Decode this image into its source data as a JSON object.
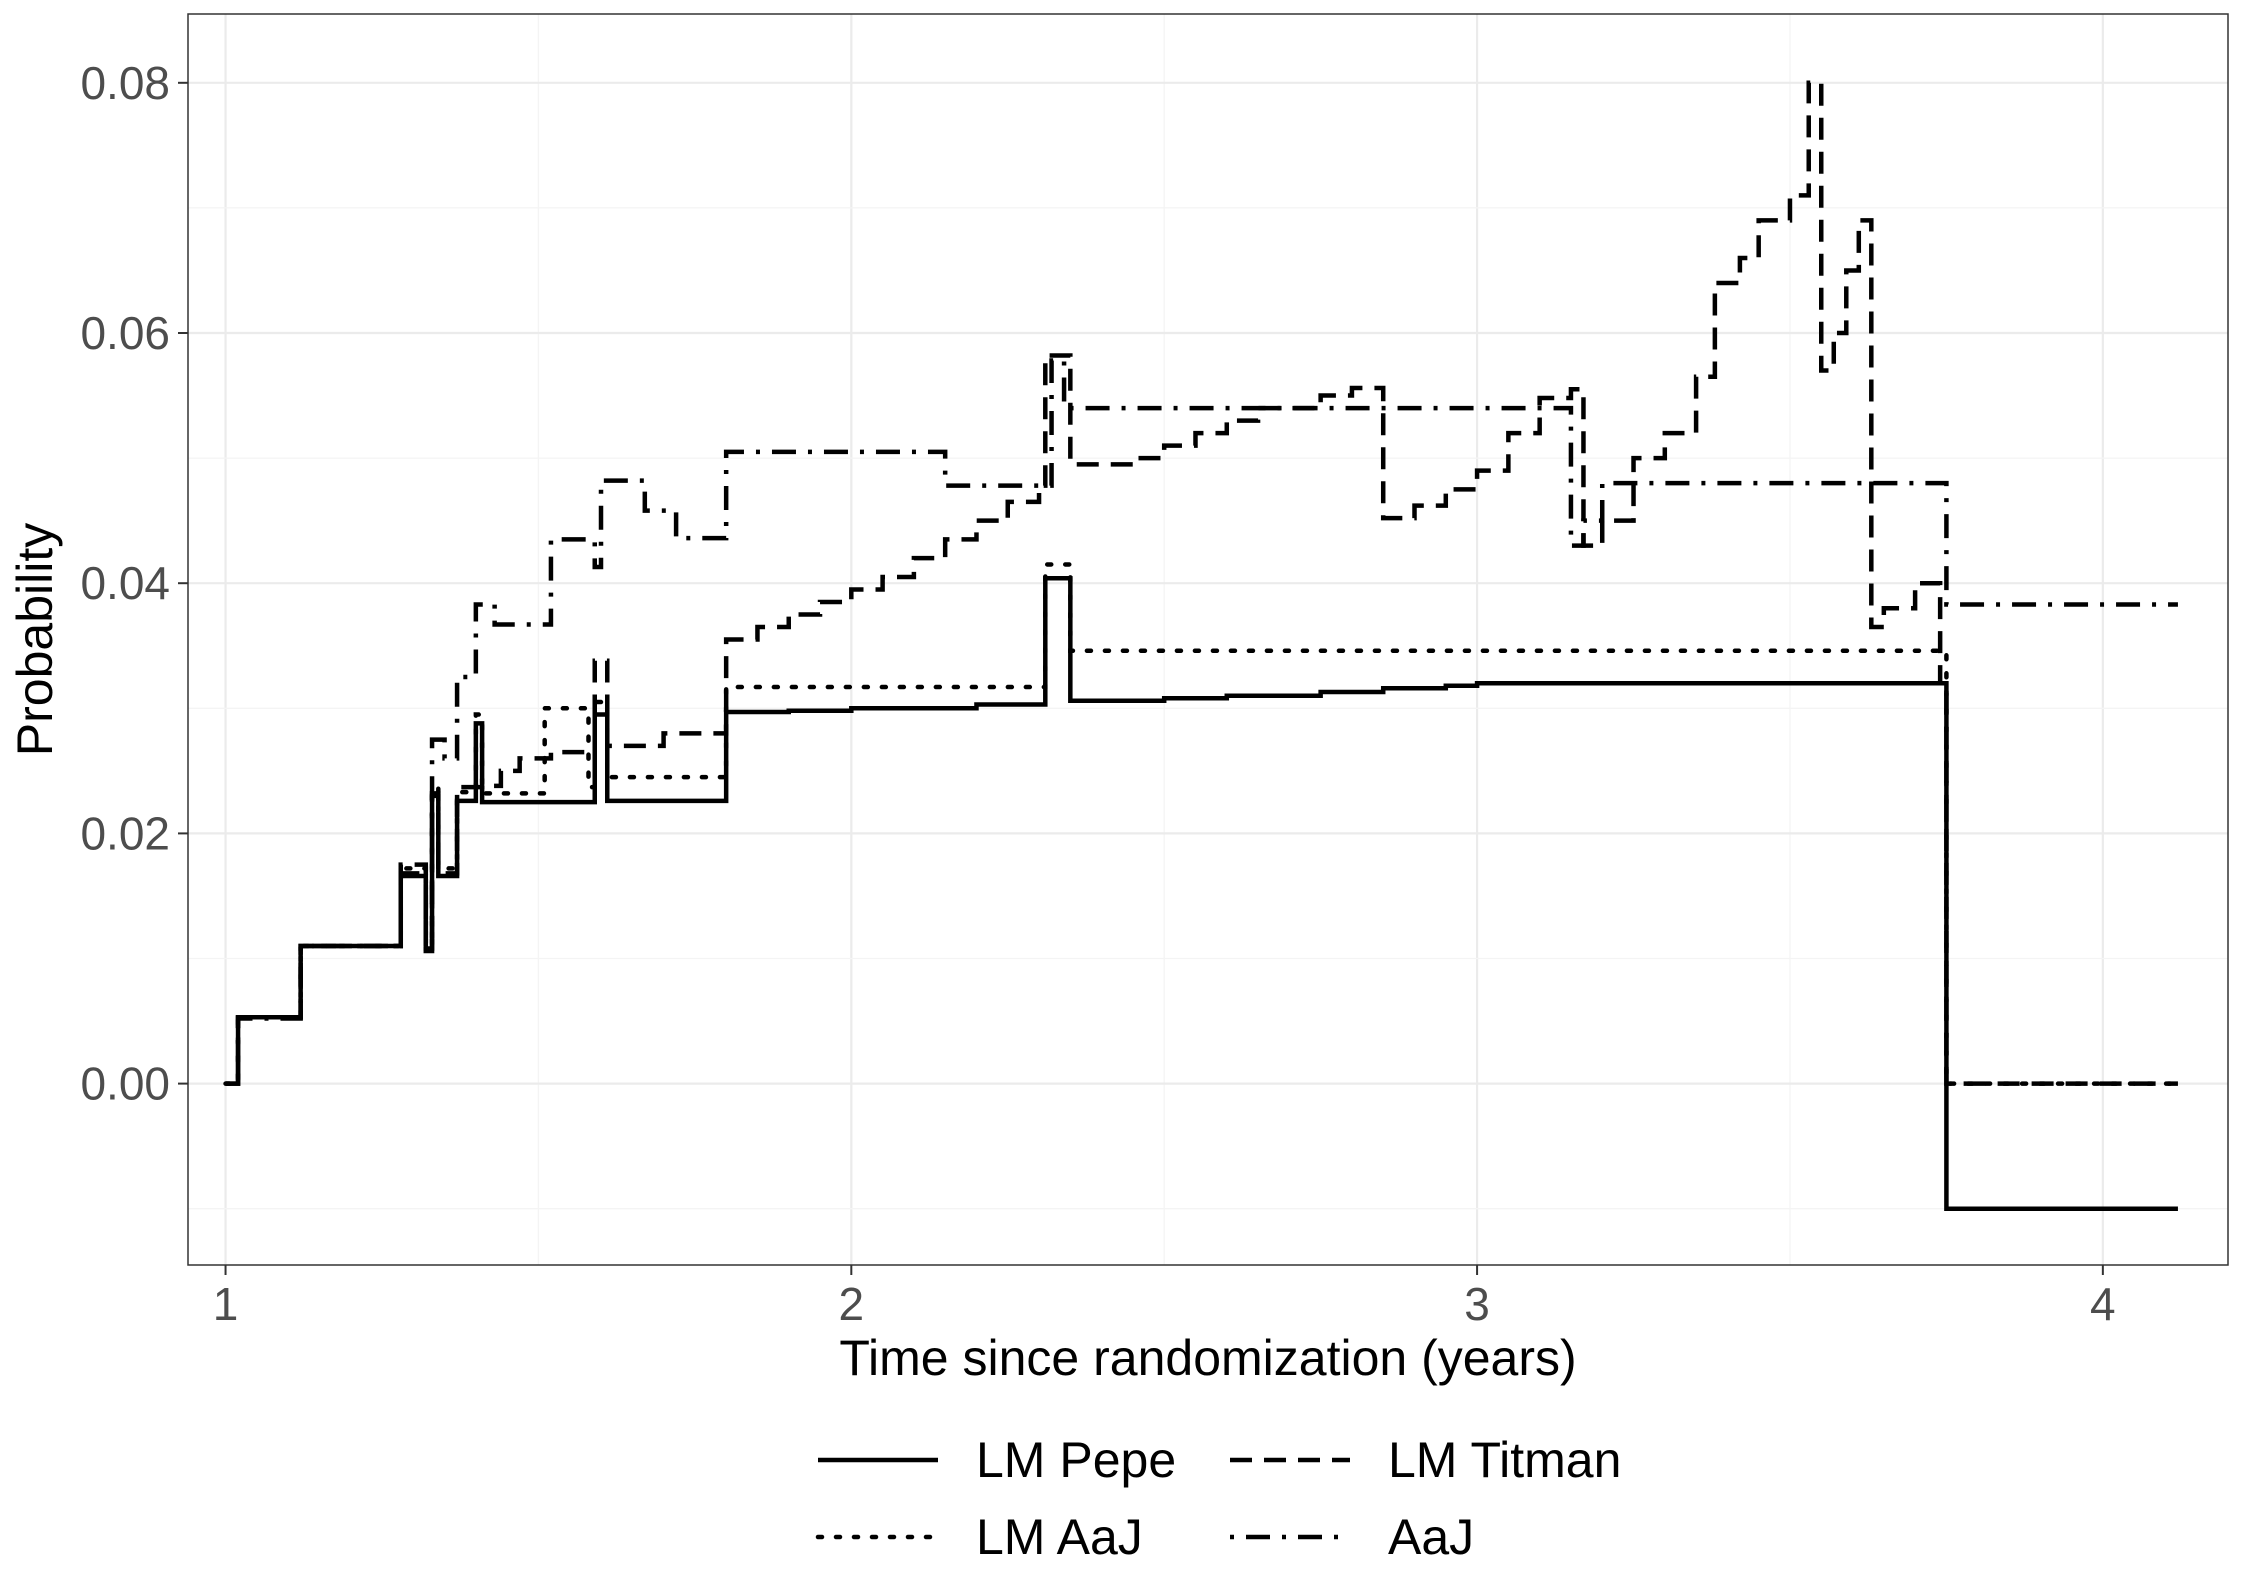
{
  "chart_data": {
    "type": "line",
    "step": true,
    "title": "",
    "xlabel": "Time since randomization (years)",
    "ylabel": "Probability",
    "xlim": [
      0.94,
      4.2
    ],
    "ylim": [
      -0.0145,
      0.0855
    ],
    "x_ticks": [
      1,
      2,
      3,
      4
    ],
    "x_tick_labels": [
      "1",
      "2",
      "3",
      "4"
    ],
    "y_ticks": [
      0.0,
      0.02,
      0.04,
      0.06,
      0.08
    ],
    "y_tick_labels": [
      "0.00",
      "0.02",
      "0.04",
      "0.06",
      "0.08"
    ],
    "grid": true,
    "legend_position": "bottom",
    "series": [
      {
        "name": "LM Pepe",
        "linestyle": "solid",
        "color": "#000000",
        "x": [
          1.0,
          1.02,
          1.12,
          1.28,
          1.32,
          1.33,
          1.34,
          1.37,
          1.4,
          1.41,
          1.58,
          1.59,
          1.61,
          1.8,
          1.9,
          2.0,
          2.1,
          2.2,
          2.3,
          2.31,
          2.35,
          2.5,
          2.6,
          2.75,
          2.85,
          2.95,
          3.0,
          3.5,
          3.74,
          3.75,
          4.12
        ],
        "y": [
          0.0,
          0.0053,
          0.011,
          0.0166,
          0.0106,
          0.023,
          0.0166,
          0.0226,
          0.0288,
          0.0225,
          0.0225,
          0.0295,
          0.0226,
          0.0297,
          0.0298,
          0.03,
          0.03,
          0.0303,
          0.0303,
          0.0404,
          0.0306,
          0.0308,
          0.031,
          0.0313,
          0.0316,
          0.0318,
          0.032,
          0.032,
          0.032,
          -0.01,
          -0.01
        ]
      },
      {
        "name": "LM Titman",
        "linestyle": "dashed",
        "color": "#000000",
        "x": [
          1.0,
          1.02,
          1.12,
          1.28,
          1.32,
          1.33,
          1.34,
          1.37,
          1.41,
          1.44,
          1.47,
          1.52,
          1.58,
          1.59,
          1.61,
          1.7,
          1.8,
          1.85,
          1.9,
          1.95,
          2.0,
          2.05,
          2.1,
          2.15,
          2.2,
          2.25,
          2.3,
          2.31,
          2.35,
          2.45,
          2.5,
          2.55,
          2.6,
          2.65,
          2.7,
          2.75,
          2.8,
          2.85,
          2.9,
          2.95,
          3.0,
          3.05,
          3.1,
          3.15,
          3.17,
          3.2,
          3.25,
          3.3,
          3.35,
          3.38,
          3.42,
          3.45,
          3.5,
          3.53,
          3.55,
          3.57,
          3.59,
          3.61,
          3.63,
          3.65,
          3.7,
          3.74,
          3.75,
          4.12
        ],
        "y": [
          0.0,
          0.0053,
          0.011,
          0.0175,
          0.0112,
          0.0232,
          0.0168,
          0.0237,
          0.0238,
          0.025,
          0.026,
          0.0265,
          0.0265,
          0.0338,
          0.027,
          0.028,
          0.0355,
          0.0365,
          0.0375,
          0.0385,
          0.0395,
          0.0405,
          0.042,
          0.0435,
          0.045,
          0.0465,
          0.0478,
          0.0582,
          0.0495,
          0.05,
          0.051,
          0.052,
          0.053,
          0.054,
          0.054,
          0.055,
          0.0556,
          0.0452,
          0.0462,
          0.0475,
          0.049,
          0.052,
          0.0548,
          0.0555,
          0.043,
          0.045,
          0.05,
          0.052,
          0.0565,
          0.064,
          0.066,
          0.069,
          0.071,
          0.08,
          0.057,
          0.06,
          0.065,
          0.069,
          0.0365,
          0.038,
          0.04,
          0.032,
          0.0,
          0.0
        ]
      },
      {
        "name": "LM AaJ",
        "linestyle": "dotted",
        "color": "#000000",
        "x": [
          1.0,
          1.02,
          1.12,
          1.28,
          1.32,
          1.33,
          1.34,
          1.37,
          1.4,
          1.41,
          1.5,
          1.51,
          1.58,
          1.59,
          1.61,
          1.8,
          2.3,
          2.31,
          2.35,
          3.74,
          3.75,
          4.12
        ],
        "y": [
          0.0,
          0.0053,
          0.011,
          0.0172,
          0.0109,
          0.0236,
          0.0172,
          0.0233,
          0.0295,
          0.0232,
          0.0232,
          0.03,
          0.0237,
          0.0305,
          0.0245,
          0.0317,
          0.0317,
          0.0415,
          0.0346,
          0.0346,
          0.0,
          0.0
        ]
      },
      {
        "name": "AaJ",
        "linestyle": "dotdash",
        "color": "#000000",
        "x": [
          1.0,
          1.02,
          1.12,
          1.28,
          1.32,
          1.33,
          1.35,
          1.37,
          1.4,
          1.43,
          1.5,
          1.52,
          1.59,
          1.6,
          1.67,
          1.72,
          1.8,
          2.0,
          2.15,
          2.3,
          2.32,
          2.34,
          2.45,
          3.1,
          3.15,
          3.17,
          3.2,
          3.6,
          3.65,
          3.74,
          3.75,
          4.12
        ],
        "y": [
          0.0,
          0.0052,
          0.011,
          0.0168,
          0.0108,
          0.0275,
          0.026,
          0.0325,
          0.0383,
          0.0367,
          0.0367,
          0.0435,
          0.0413,
          0.0482,
          0.0458,
          0.0436,
          0.0505,
          0.0505,
          0.0478,
          0.0478,
          0.0578,
          0.054,
          0.054,
          0.054,
          0.043,
          0.045,
          0.048,
          0.048,
          0.048,
          0.048,
          0.0383,
          0.0383
        ]
      }
    ],
    "legend": {
      "entries": [
        "LM Pepe",
        "LM Titman",
        "LM AaJ",
        "AaJ"
      ]
    }
  }
}
